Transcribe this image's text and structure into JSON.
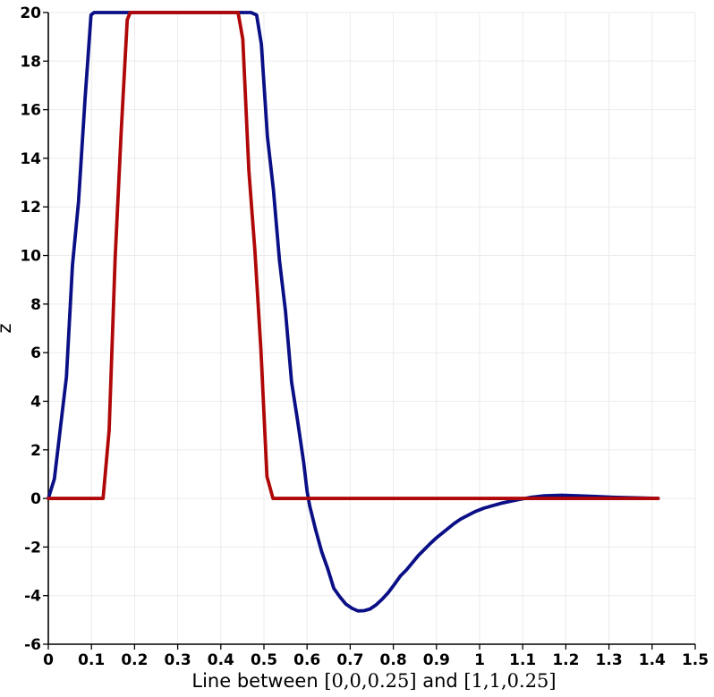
{
  "chart_data": {
    "type": "line",
    "title": "",
    "xlabel_parts": [
      "Line between ",
      "[0,0,0.25]",
      " and ",
      "[1,1,0.25]"
    ],
    "ylabel": "z",
    "xlim": [
      0,
      1.5
    ],
    "ylim": [
      -6,
      20
    ],
    "x_ticks": [
      0,
      0.1,
      0.2,
      0.3,
      0.4,
      0.5,
      0.6,
      0.7,
      0.8,
      0.9,
      1,
      1.1,
      1.2,
      1.3,
      1.4,
      1.5
    ],
    "x_tick_labels": [
      "0",
      "0.1",
      "0.2",
      "0.3",
      "0.4",
      "0.5",
      "0.6",
      "0.7",
      "0.8",
      "0.9",
      "1",
      "1.1",
      "1.2",
      "1.3",
      "1.4",
      "1.5"
    ],
    "y_ticks": [
      -6,
      -4,
      -2,
      0,
      2,
      4,
      6,
      8,
      10,
      12,
      14,
      16,
      18,
      20
    ],
    "y_tick_labels": [
      "-6",
      "-4",
      "-2",
      "0",
      "2",
      "4",
      "6",
      "8",
      "10",
      "12",
      "14",
      "16",
      "18",
      "20"
    ],
    "grid": true,
    "legend": "none",
    "series": [
      {
        "color": "#0a0f86",
        "x": [
          0,
          0.014,
          0.028,
          0.042,
          0.056,
          0.07,
          0.085,
          0.099,
          0.106,
          0.113,
          0.2,
          0.3,
          0.4,
          0.47,
          0.483,
          0.494,
          0.508,
          0.522,
          0.536,
          0.55,
          0.564,
          0.578,
          0.592,
          0.6,
          0.606,
          0.62,
          0.634,
          0.648,
          0.662,
          0.676,
          0.69,
          0.704,
          0.718,
          0.732,
          0.746,
          0.76,
          0.774,
          0.788,
          0.802,
          0.816,
          0.83,
          0.844,
          0.858,
          0.872,
          0.886,
          0.9,
          0.914,
          0.928,
          0.942,
          0.956,
          0.97,
          0.99,
          1.01,
          1.03,
          1.05,
          1.07,
          1.09,
          1.12,
          1.15,
          1.19,
          1.23,
          1.27,
          1.31,
          1.35,
          1.39,
          1.414
        ],
        "y": [
          0,
          0.8,
          2.9,
          5,
          9.6,
          12.2,
          16.4,
          19.9,
          20,
          20,
          20,
          20,
          20,
          20,
          19.9,
          18.7,
          14.9,
          12.7,
          9.8,
          7.7,
          4.8,
          3.2,
          1.5,
          0.3,
          -0.3,
          -1.3,
          -2.2,
          -2.9,
          -3.7,
          -4.05,
          -4.35,
          -4.52,
          -4.63,
          -4.62,
          -4.55,
          -4.38,
          -4.15,
          -3.88,
          -3.55,
          -3.2,
          -2.95,
          -2.65,
          -2.35,
          -2.1,
          -1.85,
          -1.62,
          -1.42,
          -1.22,
          -1.02,
          -0.85,
          -0.72,
          -0.54,
          -0.4,
          -0.3,
          -0.2,
          -0.12,
          -0.05,
          0.05,
          0.11,
          0.13,
          0.11,
          0.08,
          0.05,
          0.03,
          0.01,
          0
        ]
      },
      {
        "color": "#b00808",
        "x": [
          0,
          0.1,
          0.127,
          0.141,
          0.155,
          0.169,
          0.183,
          0.19,
          0.197,
          0.3,
          0.4,
          0.44,
          0.451,
          0.465,
          0.479,
          0.493,
          0.507,
          0.521,
          0.6,
          0.8,
          1,
          1.2,
          1.414
        ],
        "y": [
          0,
          0,
          0,
          2.8,
          9.9,
          15.1,
          19.7,
          20,
          20,
          20,
          20,
          20,
          18.9,
          13.5,
          10.2,
          6.1,
          0.9,
          0,
          0,
          0,
          0,
          0,
          0
        ]
      }
    ]
  }
}
